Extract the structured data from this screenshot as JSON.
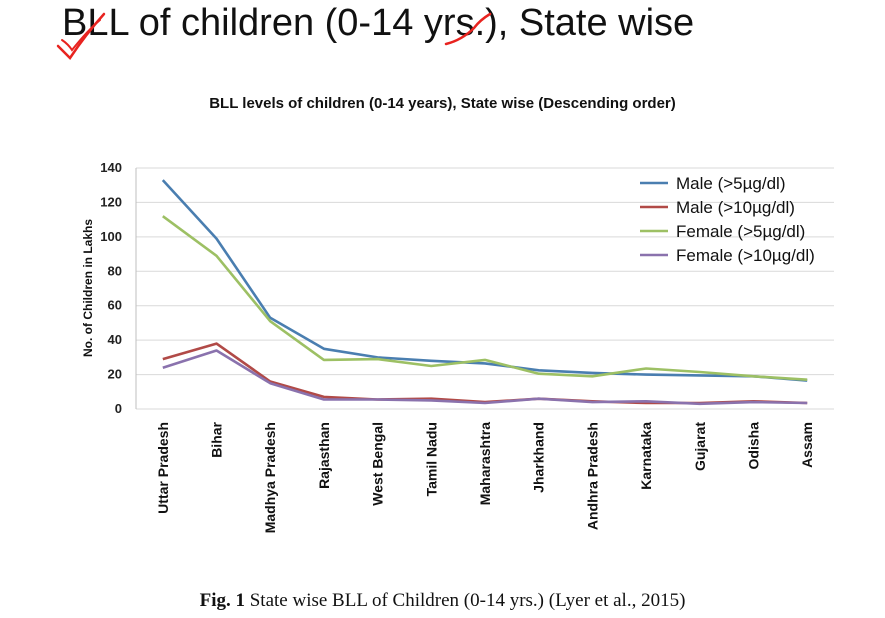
{
  "slide_title": "BLL of children (0-14 yrs.), State wise",
  "caption": {
    "label": "Fig. 1",
    "text": "State wise BLL of Children (0-14 yrs.) (Lyer et al., 2015)"
  },
  "colors": {
    "male_5": "#4a7eb0",
    "male_10": "#b14a47",
    "female_5": "#9dc064",
    "female_10": "#8a72ad",
    "grid": "#d9d9d9",
    "ink": "#e8231f"
  },
  "chart_data": {
    "type": "line",
    "title": "BLL levels of children (0-14 years), State wise (Descending order)",
    "xlabel": "",
    "ylabel": "No. of Children in Lakhs",
    "ylim": [
      0,
      140
    ],
    "yticks": [
      0,
      20,
      40,
      60,
      80,
      100,
      120,
      140
    ],
    "grid": true,
    "legend_position": "top-right",
    "categories": [
      "Uttar Pradesh",
      "Bihar",
      "Madhya Pradesh",
      "Rajasthan",
      "West Bengal",
      "Tamil Nadu",
      "Maharashtra",
      "Jharkhand",
      "Andhra Pradesh",
      "Karnataka",
      "Gujarat",
      "Odisha",
      "Assam"
    ],
    "series": [
      {
        "name": "Male (>5µg/dl)",
        "color_key": "male_5",
        "values": [
          133,
          99,
          53,
          35,
          30,
          28,
          26.5,
          22.5,
          21,
          20,
          19.5,
          19,
          16.5
        ]
      },
      {
        "name": "Male (>10µg/dl)",
        "color_key": "male_10",
        "values": [
          29,
          38,
          16,
          7,
          5.5,
          6,
          4,
          6,
          4.5,
          3.5,
          3.5,
          4.5,
          3.5
        ]
      },
      {
        "name": "Female (>5µg/dl)",
        "color_key": "female_5",
        "values": [
          112,
          89,
          51,
          28.5,
          29,
          25,
          28.5,
          20.5,
          19,
          23.5,
          21.5,
          19,
          17
        ]
      },
      {
        "name": "Female (>10µg/dl)",
        "color_key": "female_10",
        "values": [
          24,
          34,
          15,
          5.5,
          5.5,
          5,
          3.5,
          6,
          4,
          4.5,
          3,
          4,
          3.5
        ]
      }
    ]
  }
}
